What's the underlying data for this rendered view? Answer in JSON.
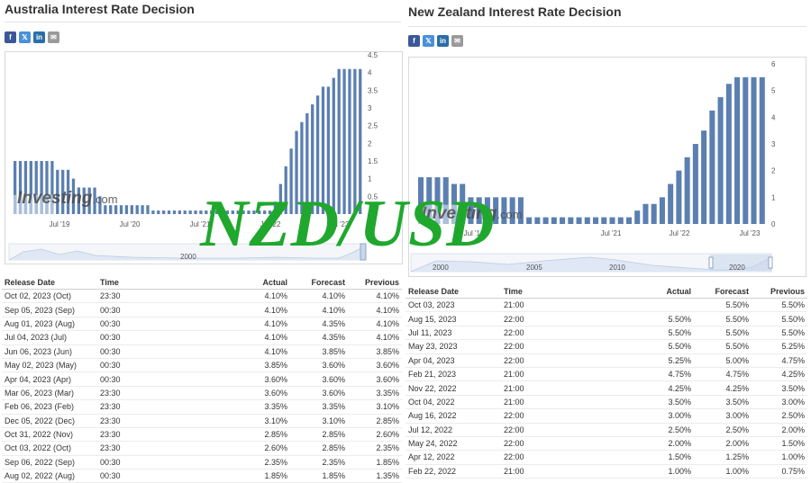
{
  "watermark": "NZD/USD",
  "share_icons": [
    "facebook-icon",
    "twitter-icon",
    "linkedin-icon",
    "email-icon"
  ],
  "colors": {
    "bar": "#5b7fb0",
    "bar_light": "#a9bfdb",
    "up": "#2a9d2a",
    "down": "#e0201a",
    "overlay": "#1fa82d"
  },
  "logo": {
    "name": "Investing",
    "suffix": ".com"
  },
  "australia": {
    "title": "Australia Interest Rate Decision",
    "chart_data": {
      "type": "bar",
      "title": "",
      "x_ticks": [
        "Jul '19",
        "Jul '20",
        "Jul '21",
        "Jul '22",
        "Jul '23"
      ],
      "y_ticks": [
        "0",
        "0.5",
        "1",
        "1.5",
        "2",
        "2.5",
        "3",
        "3.5",
        "4",
        "4.5"
      ],
      "ylim": [
        0,
        4.5
      ],
      "series": [
        {
          "values": [
            1.5,
            1.5,
            1.5,
            1.5,
            1.5,
            1.5,
            1.5,
            1.5,
            1.25,
            1.25,
            1.25,
            1.0,
            0.75,
            0.75,
            0.75,
            0.75,
            0.5,
            0.25,
            0.25,
            0.25,
            0.25,
            0.25,
            0.25,
            0.25,
            0.25,
            0.25,
            0.1,
            0.1,
            0.1,
            0.1,
            0.1,
            0.1,
            0.1,
            0.1,
            0.1,
            0.1,
            0.1,
            0.1,
            0.1,
            0.1,
            0.1,
            0.1,
            0.1,
            0.1,
            0.1,
            0.1,
            0.1,
            0.1,
            0.1,
            0.35,
            0.85,
            1.35,
            1.85,
            2.35,
            2.6,
            2.85,
            3.1,
            3.35,
            3.6,
            3.6,
            3.85,
            4.1,
            4.1,
            4.1,
            4.1,
            4.1
          ]
        }
      ],
      "navigator_ticks": [
        "2000"
      ]
    },
    "table": {
      "headers": {
        "date": "Release Date",
        "time": "Time",
        "actual": "Actual",
        "forecast": "Forecast",
        "previous": "Previous"
      },
      "rows": [
        {
          "date": "Oct 02, 2023 (Oct)",
          "time": "23:30",
          "actual": "4.10%",
          "forecast": "4.10%",
          "previous": "4.10%",
          "status": ""
        },
        {
          "date": "Sep 05, 2023 (Sep)",
          "time": "00:30",
          "actual": "4.10%",
          "forecast": "4.10%",
          "previous": "4.10%",
          "status": ""
        },
        {
          "date": "Aug 01, 2023 (Aug)",
          "time": "00:30",
          "actual": "4.10%",
          "forecast": "4.35%",
          "previous": "4.10%",
          "status": "down"
        },
        {
          "date": "Jul 04, 2023 (Jul)",
          "time": "00:30",
          "actual": "4.10%",
          "forecast": "4.35%",
          "previous": "4.10%",
          "status": "down"
        },
        {
          "date": "Jun 06, 2023 (Jun)",
          "time": "00:30",
          "actual": "4.10%",
          "forecast": "3.85%",
          "previous": "3.85%",
          "status": "up"
        },
        {
          "date": "May 02, 2023 (May)",
          "time": "00:30",
          "actual": "3.85%",
          "forecast": "3.60%",
          "previous": "3.60%",
          "status": "up"
        },
        {
          "date": "Apr 04, 2023 (Apr)",
          "time": "00:30",
          "actual": "3.60%",
          "forecast": "3.60%",
          "previous": "3.60%",
          "status": ""
        },
        {
          "date": "Mar 06, 2023 (Mar)",
          "time": "23:30",
          "actual": "3.60%",
          "forecast": "3.60%",
          "previous": "3.35%",
          "status": ""
        },
        {
          "date": "Feb 06, 2023 (Feb)",
          "time": "23:30",
          "actual": "3.35%",
          "forecast": "3.35%",
          "previous": "3.10%",
          "status": ""
        },
        {
          "date": "Dec 05, 2022 (Dec)",
          "time": "23:30",
          "actual": "3.10%",
          "forecast": "3.10%",
          "previous": "2.85%",
          "status": ""
        },
        {
          "date": "Oct 31, 2022 (Nov)",
          "time": "23:30",
          "actual": "2.85%",
          "forecast": "2.85%",
          "previous": "2.60%",
          "status": ""
        },
        {
          "date": "Oct 03, 2022 (Oct)",
          "time": "23:30",
          "actual": "2.60%",
          "forecast": "2.85%",
          "previous": "2.35%",
          "status": "down"
        },
        {
          "date": "Sep 06, 2022 (Sep)",
          "time": "00:30",
          "actual": "2.35%",
          "forecast": "2.35%",
          "previous": "1.85%",
          "status": ""
        },
        {
          "date": "Aug 02, 2022 (Aug)",
          "time": "00:30",
          "actual": "1.85%",
          "forecast": "1.85%",
          "previous": "1.35%",
          "status": ""
        }
      ]
    }
  },
  "newzealand": {
    "title": "New Zealand Interest Rate Decision",
    "chart_data": {
      "type": "bar",
      "title": "",
      "x_ticks": [
        "Jul '19",
        "Jul '21",
        "Jul '22",
        "Jul '23"
      ],
      "y_ticks": [
        "0",
        "1",
        "2",
        "3",
        "4",
        "5",
        "6"
      ],
      "ylim": [
        0,
        6
      ],
      "series": [
        {
          "values": [
            1.75,
            1.75,
            1.75,
            1.75,
            1.5,
            1.5,
            1.0,
            1.0,
            1.0,
            1.0,
            1.0,
            1.0,
            1.0,
            0.25,
            0.25,
            0.25,
            0.25,
            0.25,
            0.25,
            0.25,
            0.25,
            0.25,
            0.25,
            0.25,
            0.25,
            0.25,
            0.5,
            0.75,
            0.75,
            1.0,
            1.5,
            2.0,
            2.5,
            3.0,
            3.5,
            4.25,
            4.75,
            5.25,
            5.5,
            5.5,
            5.5,
            5.5
          ]
        }
      ],
      "navigator_ticks": [
        "2000",
        "2005",
        "2010",
        "2020"
      ]
    },
    "table": {
      "headers": {
        "date": "Release Date",
        "time": "Time",
        "actual": "Actual",
        "forecast": "Forecast",
        "previous": "Previous"
      },
      "rows": [
        {
          "date": "Oct 03, 2023",
          "time": "21:00",
          "actual": "",
          "forecast": "5.50%",
          "previous": "5.50%",
          "status": ""
        },
        {
          "date": "Aug 15, 2023",
          "time": "22:00",
          "actual": "5.50%",
          "forecast": "5.50%",
          "previous": "5.50%",
          "status": ""
        },
        {
          "date": "Jul 11, 2023",
          "time": "22:00",
          "actual": "5.50%",
          "forecast": "5.50%",
          "previous": "5.50%",
          "status": ""
        },
        {
          "date": "May 23, 2023",
          "time": "22:00",
          "actual": "5.50%",
          "forecast": "5.50%",
          "previous": "5.25%",
          "status": ""
        },
        {
          "date": "Apr 04, 2023",
          "time": "22:00",
          "actual": "5.25%",
          "forecast": "5.00%",
          "previous": "4.75%",
          "status": "up"
        },
        {
          "date": "Feb 21, 2023",
          "time": "21:00",
          "actual": "4.75%",
          "forecast": "4.75%",
          "previous": "4.25%",
          "status": ""
        },
        {
          "date": "Nov 22, 2022",
          "time": "21:00",
          "actual": "4.25%",
          "forecast": "4.25%",
          "previous": "3.50%",
          "status": ""
        },
        {
          "date": "Oct 04, 2022",
          "time": "21:00",
          "actual": "3.50%",
          "forecast": "3.50%",
          "previous": "3.00%",
          "status": ""
        },
        {
          "date": "Aug 16, 2022",
          "time": "22:00",
          "actual": "3.00%",
          "forecast": "3.00%",
          "previous": "2.50%",
          "status": ""
        },
        {
          "date": "Jul 12, 2022",
          "time": "22:00",
          "actual": "2.50%",
          "forecast": "2.50%",
          "previous": "2.00%",
          "status": ""
        },
        {
          "date": "May 24, 2022",
          "time": "22:00",
          "actual": "2.00%",
          "forecast": "2.00%",
          "previous": "1.50%",
          "status": ""
        },
        {
          "date": "Apr 12, 2022",
          "time": "22:00",
          "actual": "1.50%",
          "forecast": "1.25%",
          "previous": "1.00%",
          "status": "up"
        },
        {
          "date": "Feb 22, 2022",
          "time": "21:00",
          "actual": "1.00%",
          "forecast": "1.00%",
          "previous": "0.75%",
          "status": ""
        }
      ]
    }
  }
}
